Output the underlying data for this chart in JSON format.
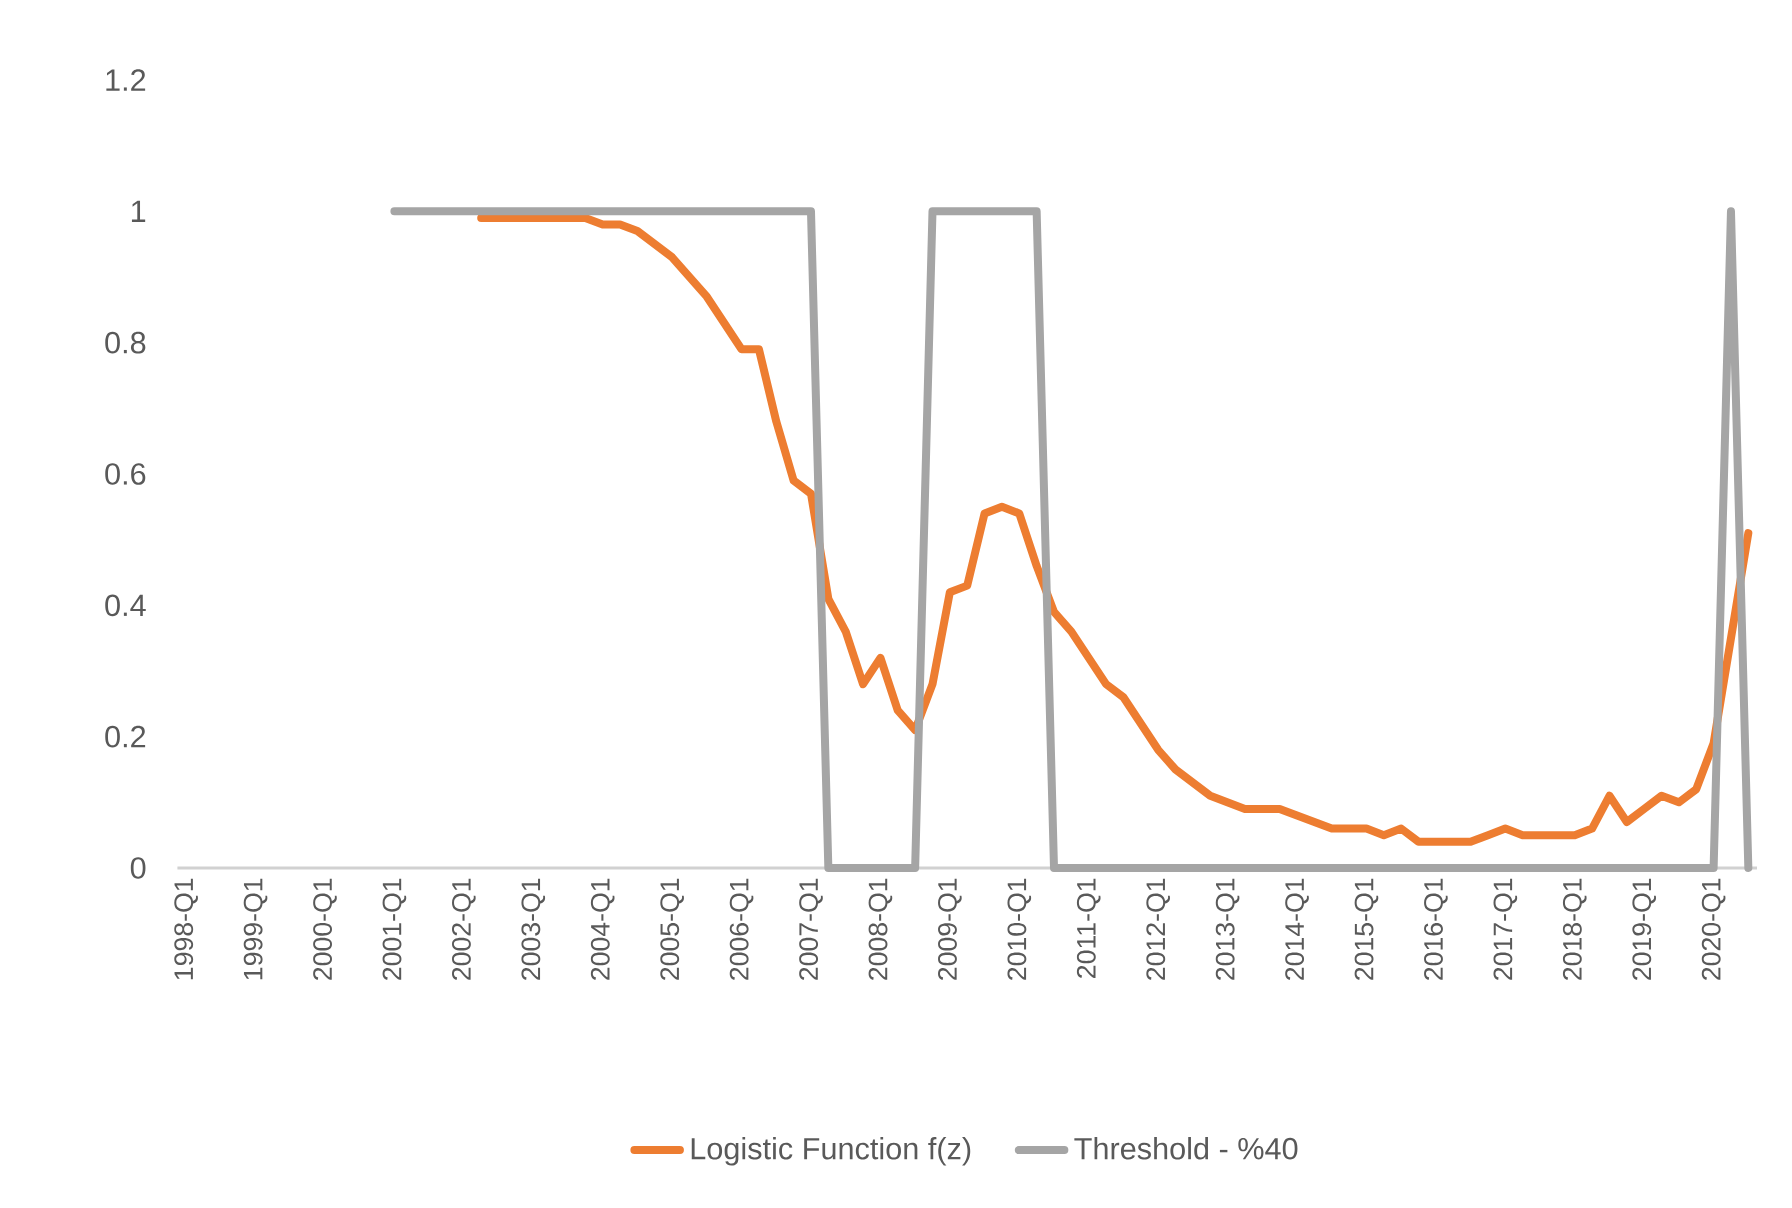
{
  "chart_data": {
    "type": "line",
    "categories": [
      "1998-Q1",
      null,
      null,
      null,
      "1999-Q1",
      null,
      null,
      null,
      "2000-Q1",
      null,
      null,
      null,
      "2001-Q1",
      null,
      null,
      null,
      "2002-Q1",
      null,
      null,
      null,
      "2003-Q1",
      null,
      null,
      null,
      "2004-Q1",
      null,
      null,
      null,
      "2005-Q1",
      null,
      null,
      null,
      "2006-Q1",
      null,
      null,
      null,
      "2007-Q1",
      null,
      null,
      null,
      "2008-Q1",
      null,
      null,
      null,
      "2009-Q1",
      null,
      null,
      null,
      "2010-Q1",
      null,
      null,
      null,
      "2011-Q1",
      null,
      null,
      null,
      "2012-Q1",
      null,
      null,
      null,
      "2013-Q1",
      null,
      null,
      null,
      "2014-Q1",
      null,
      null,
      null,
      "2015-Q1",
      null,
      null,
      null,
      "2016-Q1",
      null,
      null,
      null,
      "2017-Q1",
      null,
      null,
      null,
      "2018-Q1",
      null,
      null,
      null,
      "2019-Q1",
      null,
      null,
      null,
      "2020-Q1",
      null,
      null
    ],
    "series": [
      {
        "name": "Logistic Function f(z)",
        "color": "#ed7d31",
        "values": [
          null,
          null,
          null,
          null,
          null,
          null,
          null,
          null,
          null,
          null,
          null,
          null,
          null,
          null,
          null,
          null,
          null,
          0.99,
          0.99,
          0.99,
          0.99,
          0.99,
          0.99,
          0.99,
          0.98,
          0.98,
          0.97,
          0.95,
          0.93,
          0.9,
          0.87,
          0.83,
          0.79,
          0.79,
          0.68,
          0.59,
          0.57,
          0.41,
          0.36,
          0.28,
          0.32,
          0.24,
          0.21,
          0.28,
          0.42,
          0.43,
          0.54,
          0.55,
          0.54,
          0.46,
          0.39,
          0.36,
          0.32,
          0.28,
          0.26,
          0.22,
          0.18,
          0.15,
          0.13,
          0.11,
          0.1,
          0.09,
          0.09,
          0.09,
          0.08,
          0.07,
          0.06,
          0.06,
          0.06,
          0.05,
          0.06,
          0.04,
          0.04,
          0.04,
          0.04,
          0.05,
          0.06,
          0.05,
          0.05,
          0.05,
          0.05,
          0.06,
          0.11,
          0.07,
          0.09,
          0.11,
          0.1,
          0.12,
          0.19,
          0.35,
          0.51
        ]
      },
      {
        "name": "Threshold - %40",
        "color": "#a5a5a5",
        "values": [
          null,
          null,
          null,
          null,
          null,
          null,
          null,
          null,
          null,
          null,
          null,
          null,
          1,
          1,
          1,
          1,
          1,
          1,
          1,
          1,
          1,
          1,
          1,
          1,
          1,
          1,
          1,
          1,
          1,
          1,
          1,
          1,
          1,
          1,
          1,
          1,
          1,
          0,
          0,
          0,
          0,
          0,
          0,
          1,
          1,
          1,
          1,
          1,
          1,
          1,
          0,
          0,
          0,
          0,
          0,
          0,
          0,
          0,
          0,
          0,
          0,
          0,
          0,
          0,
          0,
          0,
          0,
          0,
          0,
          0,
          0,
          0,
          0,
          0,
          0,
          0,
          0,
          0,
          0,
          0,
          0,
          0,
          0,
          0,
          0,
          0,
          0,
          0,
          0,
          1,
          0
        ]
      }
    ],
    "ylim": [
      0,
      1.2
    ],
    "yticks": [
      0,
      0.2,
      0.4,
      0.6,
      0.8,
      1,
      1.2
    ],
    "grid": false,
    "legend": "bottom",
    "marker": "none",
    "line_style": "solid"
  }
}
